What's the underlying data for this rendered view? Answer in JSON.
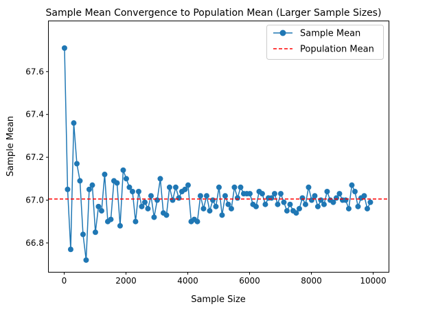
{
  "chart_data": {
    "type": "line",
    "title": "Sample Mean Convergence to Population Mean (Larger Sample Sizes)",
    "xlabel": "Sample Size",
    "ylabel": "Sample Mean",
    "xlim": [
      -500,
      10500
    ],
    "ylim": [
      66.665,
      67.835
    ],
    "xticks": [
      0,
      2000,
      4000,
      6000,
      8000,
      10000
    ],
    "yticks": [
      66.8,
      67.0,
      67.2,
      67.4,
      67.6
    ],
    "xtick_labels": [
      "0",
      "2000",
      "4000",
      "6000",
      "8000",
      "10000"
    ],
    "ytick_labels": [
      "66.8",
      "67.0",
      "67.2",
      "67.4",
      "67.6"
    ],
    "grid": false,
    "legend_position": "top-right",
    "series": [
      {
        "name": "Sample Mean",
        "color": "#1f77b4",
        "marker": "circle",
        "x": [
          10,
          110,
          210,
          310,
          410,
          510,
          610,
          710,
          810,
          910,
          1010,
          1110,
          1210,
          1310,
          1410,
          1510,
          1610,
          1710,
          1810,
          1910,
          2010,
          2110,
          2210,
          2310,
          2410,
          2510,
          2610,
          2710,
          2810,
          2910,
          3010,
          3110,
          3210,
          3310,
          3410,
          3510,
          3610,
          3710,
          3810,
          3910,
          4010,
          4110,
          4210,
          4310,
          4410,
          4510,
          4610,
          4710,
          4810,
          4910,
          5010,
          5110,
          5210,
          5310,
          5410,
          5510,
          5610,
          5710,
          5810,
          5910,
          6010,
          6110,
          6210,
          6310,
          6410,
          6510,
          6610,
          6710,
          6810,
          6910,
          7010,
          7110,
          7210,
          7310,
          7410,
          7510,
          7610,
          7710,
          7810,
          7910,
          8010,
          8110,
          8210,
          8310,
          8410,
          8510,
          8610,
          8710,
          8810,
          8910,
          9010,
          9110,
          9210,
          9310,
          9410,
          9510,
          9610,
          9710,
          9810,
          9910
        ],
        "y": [
          67.71,
          67.05,
          66.77,
          67.36,
          67.17,
          67.09,
          66.84,
          66.72,
          67.05,
          67.07,
          66.85,
          66.97,
          66.95,
          67.12,
          66.9,
          66.91,
          67.09,
          67.08,
          66.88,
          67.14,
          67.1,
          67.06,
          67.04,
          66.9,
          67.04,
          66.97,
          66.99,
          66.96,
          67.02,
          66.92,
          67.0,
          67.1,
          66.94,
          66.93,
          67.06,
          67.0,
          67.06,
          67.01,
          67.04,
          67.05,
          67.07,
          66.9,
          66.91,
          66.9,
          67.02,
          66.96,
          67.02,
          66.95,
          67.0,
          66.97,
          67.06,
          66.93,
          67.02,
          66.98,
          66.96,
          67.06,
          67.01,
          67.06,
          67.03,
          67.03,
          67.03,
          66.98,
          66.97,
          67.04,
          67.03,
          66.98,
          67.01,
          67.01,
          67.03,
          66.98,
          67.03,
          66.99,
          66.95,
          66.98,
          66.95,
          66.94,
          66.96,
          67.01,
          66.98,
          67.06,
          67.0,
          67.02,
          66.97,
          67.0,
          66.98,
          67.04,
          67.0,
          66.99,
          67.01,
          67.03,
          67.0,
          67.0,
          66.96,
          67.07,
          67.04,
          66.97,
          67.01,
          67.02,
          66.96,
          66.99
        ]
      },
      {
        "name": "Population Mean",
        "color": "#ff0000",
        "style": "dashed",
        "hline": 67.005
      }
    ]
  }
}
